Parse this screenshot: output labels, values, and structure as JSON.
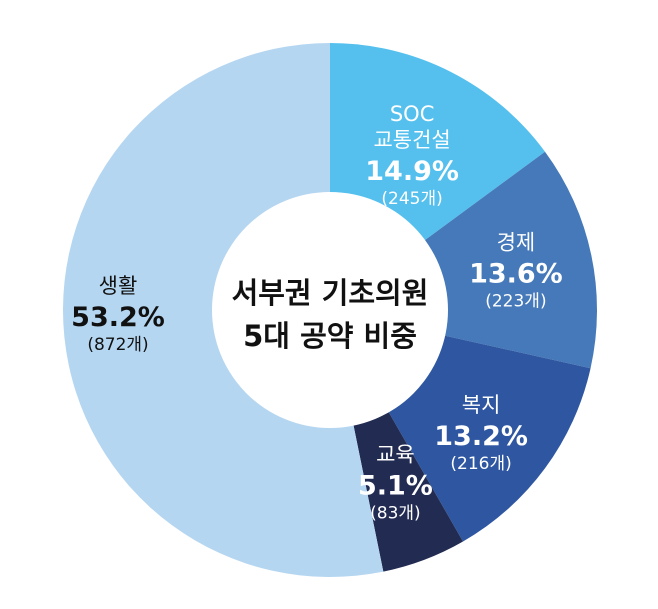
{
  "chart_data": {
    "type": "pie",
    "title": "서부권 기초의원 5대 공약 비중",
    "title_lines": [
      "서부권 기초의원",
      "5대 공약 비중"
    ],
    "start_angle_deg": 0,
    "direction": "clockwise",
    "donut": true,
    "slices": [
      {
        "name_lines": [
          "SOC",
          "교통건설"
        ],
        "percent": 14.9,
        "percent_label": "14.9%",
        "count": 245,
        "count_label": "(245개)",
        "color": "#55c0ee",
        "text_color": "#ffffff"
      },
      {
        "name_lines": [
          "경제"
        ],
        "percent": 13.6,
        "percent_label": "13.6%",
        "count": 223,
        "count_label": "(223개)",
        "color": "#4579b9",
        "text_color": "#ffffff"
      },
      {
        "name_lines": [
          "복지"
        ],
        "percent": 13.2,
        "percent_label": "13.2%",
        "count": 216,
        "count_label": "(216개)",
        "color": "#2f57a1",
        "text_color": "#ffffff"
      },
      {
        "name_lines": [
          "교육"
        ],
        "percent": 5.1,
        "percent_label": "5.1%",
        "count": 83,
        "count_label": "(83개)",
        "color": "#222b52",
        "text_color": "#ffffff"
      },
      {
        "name_lines": [
          "생활"
        ],
        "percent": 53.2,
        "percent_label": "53.2%",
        "count": 872,
        "count_label": "(872개)",
        "color": "#b5d6f1",
        "text_color": "#111111"
      }
    ]
  }
}
